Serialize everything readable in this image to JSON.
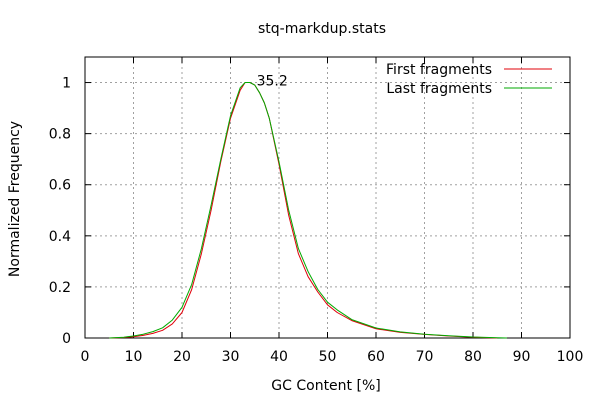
{
  "chart_data": {
    "type": "line",
    "title": "stq-markdup.stats",
    "xlabel": "GC Content [%]",
    "ylabel": "Normalized Frequency",
    "xlim": [
      0,
      100
    ],
    "ylim": [
      0,
      1.1
    ],
    "xticks": [
      0,
      10,
      20,
      30,
      40,
      50,
      60,
      70,
      80,
      90,
      100
    ],
    "yticks": [
      0,
      0.2,
      0.4,
      0.6,
      0.8,
      1
    ],
    "ytick_labels": [
      "0",
      "0.2",
      "0.4",
      "0.6",
      "0.8",
      "1"
    ],
    "grid": true,
    "legend_position": "top-right",
    "annotations": [
      {
        "text": "35.2",
        "x": 38.6,
        "y": 1.0
      }
    ],
    "series": [
      {
        "name": "First fragments",
        "color": "#e0000a",
        "x": [
          5,
          8,
          10,
          12,
          14,
          16,
          18,
          20,
          22,
          24,
          26,
          28,
          30,
          32,
          33,
          34,
          35,
          36,
          37,
          38,
          40,
          42,
          44,
          46,
          48,
          50,
          52,
          55,
          60,
          65,
          70,
          75,
          80,
          85
        ],
        "y": [
          0.0,
          0.002,
          0.005,
          0.01,
          0.018,
          0.03,
          0.055,
          0.1,
          0.19,
          0.33,
          0.5,
          0.69,
          0.86,
          0.97,
          1.0,
          1.0,
          0.99,
          0.96,
          0.92,
          0.86,
          0.68,
          0.48,
          0.33,
          0.24,
          0.18,
          0.13,
          0.1,
          0.068,
          0.036,
          0.022,
          0.014,
          0.008,
          0.003,
          0.0
        ]
      },
      {
        "name": "Last fragments",
        "color": "#00aa00",
        "x": [
          5,
          8,
          10,
          12,
          14,
          16,
          18,
          20,
          22,
          24,
          26,
          28,
          30,
          32,
          33,
          34,
          35,
          36,
          37,
          38,
          40,
          42,
          44,
          46,
          48,
          50,
          52,
          55,
          60,
          65,
          70,
          75,
          80,
          85,
          87
        ],
        "y": [
          0.0,
          0.003,
          0.008,
          0.015,
          0.025,
          0.04,
          0.07,
          0.12,
          0.21,
          0.35,
          0.52,
          0.7,
          0.87,
          0.98,
          1.0,
          1.0,
          0.99,
          0.96,
          0.92,
          0.86,
          0.69,
          0.5,
          0.35,
          0.26,
          0.19,
          0.14,
          0.11,
          0.072,
          0.039,
          0.024,
          0.015,
          0.009,
          0.004,
          0.001,
          0.0
        ]
      }
    ]
  }
}
